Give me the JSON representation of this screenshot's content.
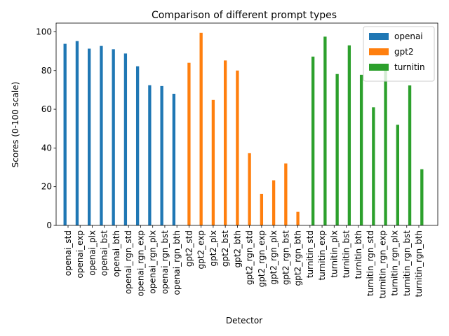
{
  "chart_data": {
    "type": "bar",
    "title": "Comparison of different prompt types",
    "x_label": "Detector",
    "y_label": "Scores (0-100 scale)",
    "categories": [
      "openai_std",
      "openai_exp",
      "openai_plx",
      "openai_bst",
      "openai_bth",
      "openai_rgn_std",
      "openai_rgn_exp",
      "openai_rgn_plx",
      "openai_rgn_bst",
      "openai_rgn_bth",
      "gpt2_std",
      "gpt2_exp",
      "gpt2_plx",
      "gpt2_bst",
      "gpt2_bth",
      "gpt2_rgn_std",
      "gpt2_rgn_exp",
      "gpt2_rgn_plx",
      "gpt2_rgn_bst",
      "gpt2_rgn_bth",
      "turnitin_std",
      "turnitin_exp",
      "turnitin_plx",
      "turnitin_bst",
      "turnitin_bth",
      "turnitin_rgn_std",
      "turnitin_rgn_exp",
      "turnitin_rgn_plx",
      "turnitin_rgn_bst",
      "turnitin_rgn_bth"
    ],
    "series": [
      {
        "name": "openai",
        "color": "#1f77b4",
        "values": [
          93.8,
          95.2,
          91.3,
          92.7,
          91.0,
          88.8,
          82.2,
          72.4,
          72.0,
          68.0,
          null,
          null,
          null,
          null,
          null,
          null,
          null,
          null,
          null,
          null,
          null,
          null,
          null,
          null,
          null,
          null,
          null,
          null,
          null,
          null
        ]
      },
      {
        "name": "gpt2",
        "color": "#ff7f0e",
        "values": [
          null,
          null,
          null,
          null,
          null,
          null,
          null,
          null,
          null,
          null,
          84.0,
          99.5,
          64.8,
          85.2,
          80.0,
          37.3,
          16.3,
          23.3,
          32.0,
          7.0,
          null,
          null,
          null,
          null,
          null,
          null,
          null,
          null,
          null,
          null
        ]
      },
      {
        "name": "turnitin",
        "color": "#2ca02c",
        "values": [
          null,
          null,
          null,
          null,
          null,
          null,
          null,
          null,
          null,
          null,
          null,
          null,
          null,
          null,
          null,
          null,
          null,
          null,
          null,
          null,
          87.2,
          97.5,
          78.2,
          93.0,
          77.8,
          61.0,
          81.0,
          52.0,
          72.3,
          29.0
        ]
      }
    ],
    "ylim": [
      0,
      104.5
    ],
    "yticks": [
      0,
      20,
      40,
      60,
      80,
      100
    ],
    "legend": "upper right",
    "grid": false
  }
}
